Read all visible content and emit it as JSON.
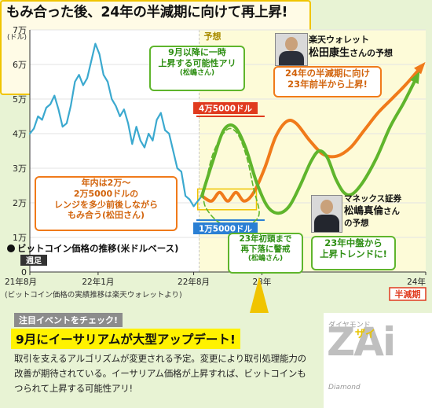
{
  "headline": "もみ合った後、24年の半減期に向けて再上昇!",
  "chart_data": {
    "type": "line",
    "title": "ビットコイン価格の推移(米ドルベース)",
    "subtitle": "週足",
    "y_unit": "(ドル)",
    "y_ticks": [
      {
        "label": "0",
        "value": 0
      },
      {
        "label": "1万",
        "value": 10000
      },
      {
        "label": "2万",
        "value": 20000
      },
      {
        "label": "3万",
        "value": 30000
      },
      {
        "label": "4万",
        "value": 40000
      },
      {
        "label": "5万",
        "value": 50000
      },
      {
        "label": "6万",
        "value": 60000
      },
      {
        "label": "7万",
        "value": 70000
      }
    ],
    "x_ticks": [
      {
        "label": "21年8月",
        "value": 0
      },
      {
        "label": "22年1月",
        "value": 5
      },
      {
        "label": "22年8月",
        "value": 12
      },
      {
        "label": "23年",
        "value": 17
      },
      {
        "label": "24年",
        "value": 29
      }
    ],
    "ylim": [
      0,
      70000
    ],
    "xlim": [
      0,
      29
    ],
    "source": "(ビットコイン価格の実績推移は楽天ウォレットより)",
    "forecast_label": "予想",
    "halving_label": "半減期",
    "reference_lines": [
      {
        "label": "4万5000ドル",
        "value": 45000,
        "color": "#e03a1e"
      },
      {
        "label": "1万5000ドル",
        "value": 15000,
        "color": "#2a7fd4"
      }
    ],
    "range_box": {
      "y_low": 18000,
      "y_high": 24000
    },
    "series": [
      {
        "name": "",
        "color": "#3ba9cf",
        "points": [
          [
            0,
            40000
          ],
          [
            0.3,
            41500
          ],
          [
            0.6,
            45000
          ],
          [
            0.9,
            44000
          ],
          [
            1.2,
            47500
          ],
          [
            1.5,
            48500
          ],
          [
            1.8,
            51000
          ],
          [
            2.1,
            47000
          ],
          [
            2.4,
            42000
          ],
          [
            2.7,
            43000
          ],
          [
            3,
            48000
          ],
          [
            3.3,
            55000
          ],
          [
            3.6,
            57000
          ],
          [
            3.9,
            54000
          ],
          [
            4.2,
            56000
          ],
          [
            4.5,
            61000
          ],
          [
            4.8,
            66000
          ],
          [
            5.1,
            63000
          ],
          [
            5.4,
            57000
          ],
          [
            5.7,
            55000
          ],
          [
            6,
            50000
          ],
          [
            6.3,
            48000
          ],
          [
            6.6,
            45000
          ],
          [
            6.9,
            47000
          ],
          [
            7.2,
            43000
          ],
          [
            7.5,
            37000
          ],
          [
            7.8,
            42000
          ],
          [
            8.1,
            38000
          ],
          [
            8.4,
            36000
          ],
          [
            8.7,
            40000
          ],
          [
            9,
            38000
          ],
          [
            9.3,
            44000
          ],
          [
            9.6,
            46000
          ],
          [
            9.9,
            41000
          ],
          [
            10.2,
            40000
          ],
          [
            10.5,
            35000
          ],
          [
            10.8,
            30000
          ],
          [
            11.1,
            29000
          ],
          [
            11.4,
            22000
          ],
          [
            11.7,
            21000
          ],
          [
            12,
            19000
          ],
          [
            12.3,
            20500
          ],
          [
            12.6,
            22000
          ],
          [
            12.9,
            21000
          ]
        ]
      },
      {
        "name": "",
        "color": "#f07a1a",
        "dashed": false,
        "points": [
          [
            12.6,
            22000
          ],
          [
            13.3,
            20500
          ],
          [
            13.9,
            23000
          ],
          [
            14.5,
            20500
          ],
          [
            15.1,
            23000
          ],
          [
            15.7,
            20500
          ],
          [
            16.4,
            23000
          ],
          [
            17.2,
            30000
          ],
          [
            18,
            39000
          ],
          [
            18.8,
            43500
          ],
          [
            19.5,
            43000
          ],
          [
            20.5,
            38000
          ],
          [
            21.5,
            34000
          ],
          [
            22.5,
            33500
          ],
          [
            23.5,
            36000
          ],
          [
            24.5,
            41000
          ],
          [
            25.5,
            46000
          ],
          [
            26.5,
            50000
          ],
          [
            27.5,
            54000
          ],
          [
            28.6,
            59000
          ]
        ]
      },
      {
        "name": "",
        "color": "#5fb52c",
        "dashed": false,
        "points": [
          [
            12.6,
            22000
          ],
          [
            13.4,
            32000
          ],
          [
            14.2,
            41000
          ],
          [
            15,
            42000
          ],
          [
            15.8,
            36000
          ],
          [
            16.6,
            26000
          ],
          [
            17.4,
            19000
          ],
          [
            18.2,
            17000
          ],
          [
            19,
            19000
          ],
          [
            19.8,
            25000
          ],
          [
            20.6,
            32000
          ],
          [
            21.2,
            35000
          ],
          [
            21.8,
            33000
          ],
          [
            22.4,
            27000
          ],
          [
            23,
            23000
          ],
          [
            23.6,
            22500
          ],
          [
            24.4,
            26000
          ],
          [
            25.4,
            33000
          ],
          [
            26.4,
            42000
          ],
          [
            27.4,
            49000
          ],
          [
            28.3,
            56000
          ]
        ]
      },
      {
        "name": "",
        "color": "#5fb52c",
        "dashed": true,
        "points": [
          [
            12.7,
            22000
          ],
          [
            13.4,
            34000
          ],
          [
            14.4,
            41000
          ],
          [
            15.2,
            40000
          ],
          [
            15.9,
            33000
          ],
          [
            16.4,
            24000
          ],
          [
            16.8,
            17000
          ],
          [
            16.2,
            14000
          ],
          [
            15,
            13000
          ],
          [
            13.8,
            14500
          ],
          [
            12.9,
            18500
          ],
          [
            12.7,
            22000
          ]
        ]
      }
    ]
  },
  "callouts": {
    "sept": [
      "9月以降に一時",
      "上昇する可能性アリ",
      "(松嶋さん)"
    ],
    "range": [
      "年内は2万〜",
      "2万5000ドルの",
      "レンジを多少前後しながら",
      "もみ合う(松田さん)"
    ],
    "orange_pred": [
      "24年の半減期に向け",
      "23年前半から上昇!"
    ],
    "fall": [
      "23年初頭まで",
      "再下落に警戒",
      "(松嶋さん)"
    ],
    "green_pred": [
      "23年中盤から",
      "上昇トレンドに!"
    ]
  },
  "people": {
    "matsuda": {
      "line1": "楽天ウォレット",
      "name": "松田康生",
      "suffix": "さんの予想"
    },
    "matsushima": {
      "line1": "マネックス証券",
      "name": "松嶋真倫",
      "suffix": "さん",
      "line3": "の予想"
    }
  },
  "note": {
    "sub": "注目イベントをチェック!",
    "headline": "9月にイーサリアムが大型アップデート!",
    "body": "取引を支えるアルゴリズムが変更される予定。変更により取引処理能力の改善が期待されている。イーサリアム価格が上昇すれば、ビットコインもつられて上昇する可能性アリ!"
  },
  "logo": {
    "small": "ダイヤモンド",
    "big": "ZAi",
    "overlay": "ザイ",
    "tag": "Diamond"
  },
  "colors": {
    "background": "#e8f3d4",
    "forecast_area": "#fdfbd8",
    "actual": "#3ba9cf",
    "orange": "#f07a1a",
    "green": "#5fb52c",
    "red_line": "#e03a1e",
    "blue_line": "#2a7fd4",
    "halving": "#e03a1e"
  }
}
